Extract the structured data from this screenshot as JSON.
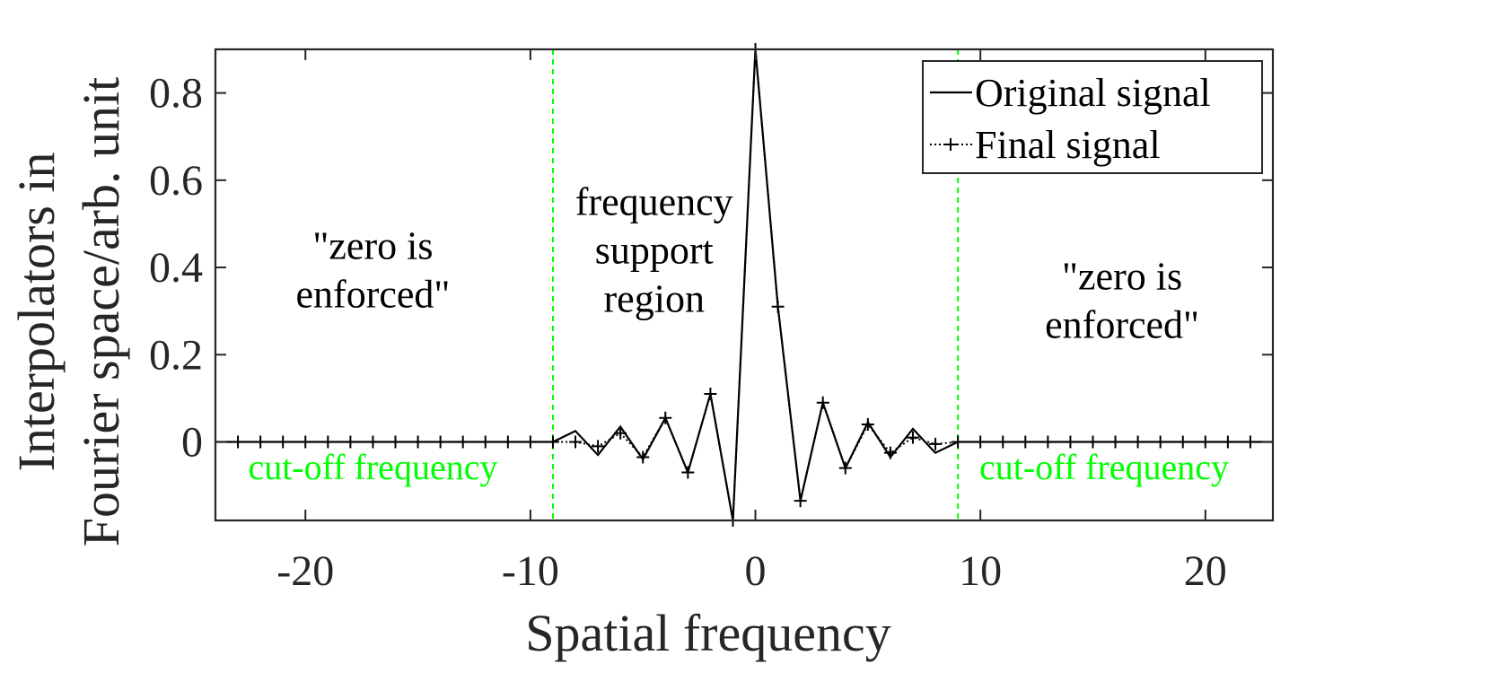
{
  "chart_data": {
    "type": "line",
    "xlabel": "Spatial frequency",
    "ylabel_lines": [
      "Interpolators in",
      "Fourier space/arb. unit"
    ],
    "xlim": [
      -24,
      23
    ],
    "ylim": [
      -0.18,
      0.9
    ],
    "xticks": [
      -20,
      -10,
      0,
      10,
      20
    ],
    "yticks": [
      0,
      0.2,
      0.4,
      0.6,
      0.8
    ],
    "xtick_labels": [
      "-20",
      "-10",
      "0",
      "10",
      "20"
    ],
    "ytick_labels": [
      "0",
      "0.2",
      "0.4",
      "0.6",
      "0.8"
    ],
    "grid": false,
    "legend_position": "top-right",
    "cutoff_lines": [
      -9,
      9
    ],
    "cutoff_color": "#00ff00",
    "series": [
      {
        "name": "Original signal",
        "style": "solid",
        "x": [
          -24,
          -23,
          -22,
          -21,
          -20,
          -19,
          -18,
          -17,
          -16,
          -15,
          -14,
          -13,
          -12,
          -11,
          -10,
          -9,
          -8,
          -7,
          -6,
          -5,
          -4,
          -3,
          -2,
          -1,
          0,
          1,
          2,
          3,
          4,
          5,
          6,
          7,
          8,
          9,
          10,
          11,
          12,
          13,
          14,
          15,
          16,
          17,
          18,
          19,
          20,
          21,
          22,
          23
        ],
        "y": [
          0,
          0,
          0,
          0,
          0,
          0,
          0,
          0,
          0,
          0,
          0,
          0,
          0,
          0,
          0,
          0,
          0.025,
          -0.03,
          0.035,
          -0.04,
          0.055,
          -0.07,
          0.11,
          -0.18,
          0.9,
          0.31,
          -0.135,
          0.09,
          -0.06,
          0.045,
          -0.035,
          0.03,
          -0.025,
          0,
          0,
          0,
          0,
          0,
          0,
          0,
          0,
          0,
          0,
          0,
          0,
          0,
          0,
          0
        ]
      },
      {
        "name": "Final signal",
        "style": "dotted-plus",
        "x": [
          -23,
          -22,
          -21,
          -20,
          -19,
          -18,
          -17,
          -16,
          -15,
          -14,
          -13,
          -12,
          -11,
          -10,
          -9,
          -8,
          -7,
          -6,
          -5,
          -4,
          -3,
          -2,
          -1,
          0,
          1,
          2,
          3,
          4,
          5,
          6,
          7,
          8,
          9,
          10,
          11,
          12,
          13,
          14,
          15,
          16,
          17,
          18,
          19,
          20,
          21,
          22
        ],
        "y": [
          0,
          0,
          0,
          0,
          0,
          0,
          0,
          0,
          0,
          0,
          0,
          0,
          0,
          0,
          0,
          0,
          -0.01,
          0.02,
          -0.035,
          0.055,
          -0.07,
          0.11,
          -0.18,
          0.9,
          0.31,
          -0.135,
          0.09,
          -0.06,
          0.04,
          -0.025,
          0.01,
          -0.005,
          0,
          0,
          0,
          0,
          0,
          0,
          0,
          0,
          0,
          0,
          0,
          0,
          0,
          0
        ]
      }
    ],
    "annotations": [
      {
        "lines": [
          "\"zero is",
          "enforced\""
        ],
        "x": -17,
        "y": 0.42,
        "color": "#000000"
      },
      {
        "lines": [
          "frequency",
          "support",
          "region"
        ],
        "x": -4.5,
        "y": 0.52,
        "color": "#000000"
      },
      {
        "lines": [
          "\"zero is",
          "enforced\""
        ],
        "x": 16.3,
        "y": 0.35,
        "color": "#000000"
      },
      {
        "lines": [
          "cut-off frequency"
        ],
        "x": -17,
        "y": -0.085,
        "color": "#00ff00"
      },
      {
        "lines": [
          "cut-off frequency"
        ],
        "x": 15.5,
        "y": -0.085,
        "color": "#00ff00"
      }
    ]
  }
}
